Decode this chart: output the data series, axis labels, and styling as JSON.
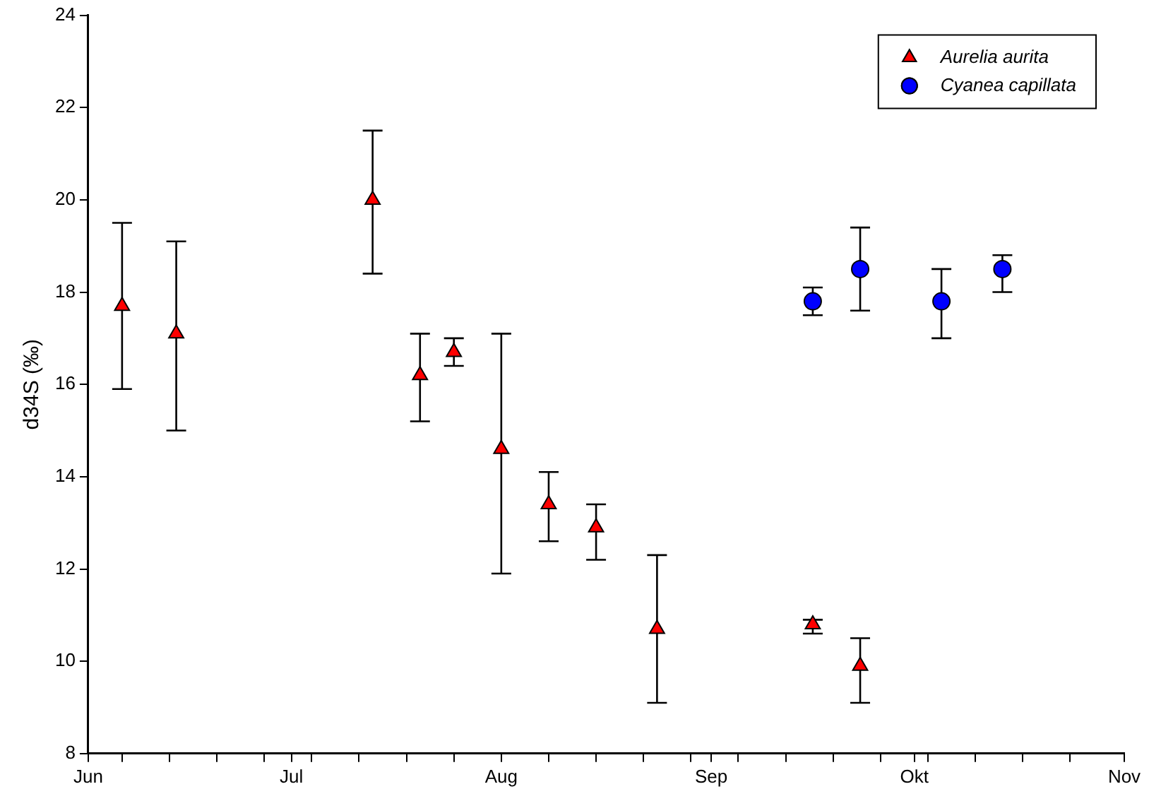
{
  "chart_data": {
    "type": "scatter",
    "ylabel": "d34S (‰)",
    "xlim": [
      "--06-01",
      "--11-01"
    ],
    "xticks": [
      {
        "value": "--06-01",
        "label": "Jun"
      },
      {
        "value": "--06-06",
        "label": null
      },
      {
        "value": "--06-13",
        "label": null
      },
      {
        "value": "--06-20",
        "label": null
      },
      {
        "value": "--06-27",
        "label": null
      },
      {
        "value": "--07-01",
        "label": "Jul"
      },
      {
        "value": "--07-04",
        "label": null
      },
      {
        "value": "--07-11",
        "label": null
      },
      {
        "value": "--07-18",
        "label": null
      },
      {
        "value": "--07-25",
        "label": null
      },
      {
        "value": "--08-01",
        "label": "Aug"
      },
      {
        "value": "--08-08",
        "label": null
      },
      {
        "value": "--08-15",
        "label": null
      },
      {
        "value": "--08-22",
        "label": null
      },
      {
        "value": "--08-29",
        "label": null
      },
      {
        "value": "--09-01",
        "label": "Sep"
      },
      {
        "value": "--09-05",
        "label": null
      },
      {
        "value": "--09-12",
        "label": null
      },
      {
        "value": "--09-19",
        "label": null
      },
      {
        "value": "--09-26",
        "label": null
      },
      {
        "value": "--10-01",
        "label": "Okt"
      },
      {
        "value": "--10-03",
        "label": null
      },
      {
        "value": "--10-10",
        "label": null
      },
      {
        "value": "--10-17",
        "label": null
      },
      {
        "value": "--10-24",
        "label": null
      },
      {
        "value": "--11-01",
        "label": "Nov"
      }
    ],
    "ylim": [
      8,
      24
    ],
    "yticks": [
      8,
      10,
      12,
      14,
      16,
      18,
      20,
      22,
      24
    ],
    "grid": false,
    "legend": "top right",
    "series": [
      {
        "name": "Aurelia aurita",
        "color": "#ff0000",
        "marker": "triangle",
        "x": [
          "--06-06",
          "--06-14",
          "--07-13",
          "--07-20",
          "--07-25",
          "--08-01",
          "--08-08",
          "--08-15",
          "--08-24",
          "--09-16",
          "--09-23"
        ],
        "values": [
          17.7,
          17.1,
          20.0,
          16.2,
          16.7,
          14.6,
          13.4,
          12.9,
          10.7,
          10.8,
          9.9
        ],
        "errors": [
          [
            15.9,
            19.5
          ],
          [
            15.0,
            19.1
          ],
          [
            18.4,
            21.5
          ],
          [
            15.2,
            17.1
          ],
          [
            16.4,
            17.0
          ],
          [
            11.9,
            17.1
          ],
          [
            12.6,
            14.1
          ],
          [
            12.2,
            13.4
          ],
          [
            9.1,
            12.3
          ],
          [
            10.6,
            10.9
          ],
          [
            9.1,
            10.5
          ]
        ]
      },
      {
        "name": "Cyanea capillata",
        "color": "#0000ff",
        "marker": "circle",
        "x": [
          "--09-16",
          "--09-23",
          "--10-05",
          "--10-14"
        ],
        "values": [
          17.8,
          18.5,
          17.8,
          18.5
        ],
        "errors": [
          [
            17.5,
            18.1
          ],
          [
            17.6,
            19.4
          ],
          [
            17.0,
            18.5
          ],
          [
            18.0,
            18.8
          ]
        ]
      }
    ]
  }
}
